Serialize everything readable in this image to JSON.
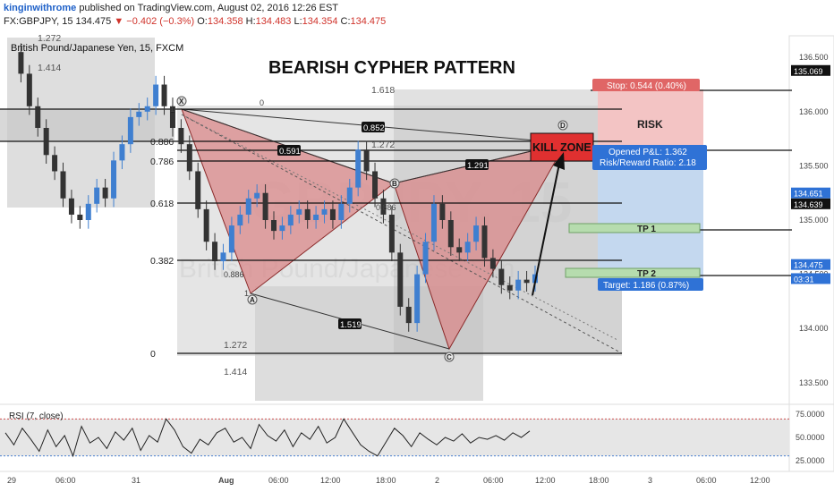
{
  "header": {
    "author": "kinginwithrome",
    "published": "published on TradingView.com, August 02, 2016 12:26 EST",
    "symbol": "FX:GBPJPY, 15",
    "last": "134.475",
    "change": "−0.402 (−0.3%)",
    "o_label": "O:",
    "o": "134.358",
    "h_label": "H:",
    "h": "134.483",
    "l_label": "L:",
    "l": "134.354",
    "c_label": "C:",
    "c": "134.475",
    "down_icon": "triangle-down-icon"
  },
  "colors": {
    "up": "#3f7fd0",
    "down": "#333333",
    "pattern_fill": "#d9888a",
    "kill_zone": "#e03030",
    "risk_fill": "#f3c4c4",
    "reward_fill": "#c4d8ef",
    "tp_fill": "#b6dcae",
    "price_badge": "#2f72d6",
    "stop_badge": "#e06666",
    "rsi_line": "#222222",
    "rsi_band": "#e6e6e6"
  },
  "chart_data": {
    "type": "candlestick",
    "title": "BEARISH CYPHER PATTERN",
    "subtitle": "British Pound/Japanese Yen, 15, FXCM",
    "watermark_symbol": "GBPJPY, 15",
    "watermark_name": "British Pound/Japanese Yen",
    "y_range": [
      133.3,
      136.7
    ],
    "y_ticks": [
      "136.500",
      "136.000",
      "135.500",
      "135.000",
      "134.500",
      "134.000",
      "133.500"
    ],
    "x_ticks": [
      "29",
      "06:00",
      "31",
      "Aug",
      "06:00",
      "12:00",
      "18:00",
      "2",
      "06:00",
      "12:00",
      "18:00",
      "3",
      "06:00",
      "12:00"
    ],
    "close_series": [
      136.55,
      136.35,
      136.05,
      135.85,
      135.6,
      135.45,
      135.2,
      135.05,
      135.0,
      135.15,
      135.3,
      135.2,
      135.55,
      135.7,
      135.95,
      136.0,
      136.05,
      136.25,
      136.05,
      135.85,
      135.7,
      135.45,
      135.1,
      134.8,
      134.62,
      134.7,
      134.95,
      135.05,
      135.2,
      135.25,
      135.0,
      134.9,
      134.95,
      135.05,
      135.1,
      135.0,
      135.05,
      135.1,
      135.0,
      135.15,
      135.3,
      135.65,
      135.45,
      135.2,
      135.05,
      134.7,
      134.2,
      134.05,
      134.5,
      134.8,
      135.15,
      135.0,
      134.75,
      134.7,
      134.8,
      134.95,
      134.65,
      134.55,
      134.4,
      134.35,
      134.45,
      134.42,
      134.5
    ],
    "pattern_points": [
      {
        "label": "X",
        "price": 136.3
      },
      {
        "label": "A",
        "price": 134.55
      },
      {
        "label": "B",
        "price": 135.6
      },
      {
        "label": "C",
        "price": 134.05
      },
      {
        "label": "D",
        "price": 136.12
      }
    ],
    "pattern_ratios": [
      "0.591",
      "1.291",
      "0.852",
      "1.519"
    ],
    "fib_levels_xa": [
      {
        "label": "1",
        "price": 136.3
      },
      {
        "label": "0.886",
        "price": 135.95
      },
      {
        "label": "0.786",
        "price": 135.78
      },
      {
        "label": "0.618",
        "price": 135.34
      },
      {
        "label": "0.382",
        "price": 134.8
      },
      {
        "label": "0",
        "price": 134.0
      }
    ],
    "fib_levels_ac": [
      {
        "label": "1.618",
        "price": 136.45
      },
      {
        "label": "1.272",
        "price": 135.9
      },
      {
        "label": "1.272",
        "price": 134.0
      },
      {
        "label": "1.414",
        "price": 133.8
      }
    ],
    "left_fib_labels": [
      "1.272",
      "1.414"
    ],
    "small_labels": [
      "1",
      "0",
      "1",
      "0.886",
      "0.886"
    ],
    "annotations": {
      "kill_zone": "KILL ZONE",
      "risk": "RISK",
      "tp1": "TP 1",
      "tp2": "TP 2"
    },
    "trade": {
      "stop": "Stop: 0.544 (0.40%)",
      "opened": "Opened P&L: 1.362",
      "risk_reward": "Risk/Reward Ratio: 2.18",
      "target": "Target: 1.186 (0.87%)"
    },
    "price_badges": [
      {
        "value": "135.069",
        "price": 136.38,
        "style": "dark"
      },
      {
        "value": "134.651",
        "price": 135.25,
        "style": "blue"
      },
      {
        "value": "134.639",
        "price": 135.15,
        "style": "dark"
      },
      {
        "value": "134.475",
        "price": 134.59,
        "style": "blue"
      },
      {
        "value": "03:31",
        "price": 134.46,
        "style": "blue"
      }
    ],
    "rsi": {
      "label": "RSI (7, close)",
      "upper": 70,
      "lower": 30,
      "ticks": [
        "75.0000",
        "50.0000",
        "25.0000"
      ],
      "values": [
        55,
        42,
        60,
        48,
        35,
        58,
        40,
        52,
        30,
        62,
        44,
        50,
        38,
        56,
        47,
        60,
        36,
        52,
        45,
        70,
        58,
        40,
        33,
        48,
        42,
        55,
        60,
        45,
        50,
        38,
        64,
        52,
        46,
        58,
        40,
        55,
        48,
        62,
        44,
        50,
        70,
        56,
        42,
        35,
        30,
        45,
        60,
        52,
        40,
        55,
        48,
        42,
        50,
        46,
        54,
        44,
        50,
        48,
        52,
        47,
        55,
        50,
        57
      ]
    }
  }
}
